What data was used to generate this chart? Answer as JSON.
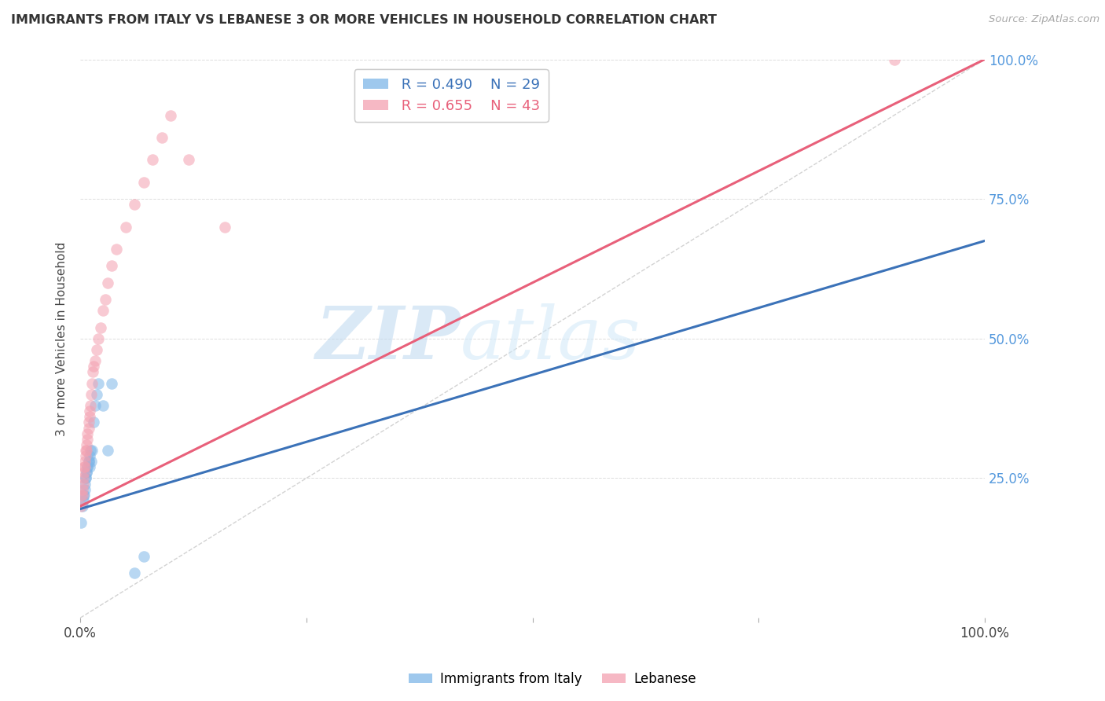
{
  "title": "IMMIGRANTS FROM ITALY VS LEBANESE 3 OR MORE VEHICLES IN HOUSEHOLD CORRELATION CHART",
  "source": "Source: ZipAtlas.com",
  "ylabel": "3 or more Vehicles in Household",
  "legend_label1": "Immigrants from Italy",
  "legend_label2": "Lebanese",
  "R1": 0.49,
  "N1": 29,
  "R2": 0.655,
  "N2": 43,
  "color_italy": "#7EB6E8",
  "color_lebanese": "#F4A0B0",
  "color_italy_line": "#3B72B8",
  "color_lebanese_line": "#E8607A",
  "color_diag": "#C8C8C8",
  "watermark_zip": "ZIP",
  "watermark_atlas": "atlas",
  "italy_x": [
    0.001,
    0.002,
    0.003,
    0.003,
    0.004,
    0.005,
    0.005,
    0.006,
    0.006,
    0.007,
    0.007,
    0.008,
    0.008,
    0.009,
    0.009,
    0.01,
    0.01,
    0.011,
    0.012,
    0.013,
    0.015,
    0.016,
    0.018,
    0.02,
    0.025,
    0.03,
    0.035,
    0.06,
    0.07
  ],
  "italy_y": [
    0.17,
    0.2,
    0.21,
    0.22,
    0.22,
    0.23,
    0.24,
    0.25,
    0.25,
    0.26,
    0.26,
    0.27,
    0.27,
    0.28,
    0.28,
    0.27,
    0.29,
    0.3,
    0.28,
    0.3,
    0.35,
    0.38,
    0.4,
    0.42,
    0.38,
    0.3,
    0.42,
    0.08,
    0.11
  ],
  "lebanese_x": [
    0.001,
    0.001,
    0.002,
    0.002,
    0.003,
    0.003,
    0.004,
    0.004,
    0.005,
    0.005,
    0.006,
    0.006,
    0.007,
    0.007,
    0.008,
    0.008,
    0.009,
    0.009,
    0.01,
    0.01,
    0.011,
    0.012,
    0.013,
    0.014,
    0.015,
    0.016,
    0.018,
    0.02,
    0.022,
    0.025,
    0.028,
    0.03,
    0.035,
    0.04,
    0.05,
    0.06,
    0.07,
    0.08,
    0.09,
    0.1,
    0.12,
    0.16,
    0.9
  ],
  "lebanese_y": [
    0.2,
    0.22,
    0.22,
    0.23,
    0.24,
    0.25,
    0.26,
    0.27,
    0.27,
    0.28,
    0.29,
    0.3,
    0.3,
    0.31,
    0.32,
    0.33,
    0.34,
    0.35,
    0.36,
    0.37,
    0.38,
    0.4,
    0.42,
    0.44,
    0.45,
    0.46,
    0.48,
    0.5,
    0.52,
    0.55,
    0.57,
    0.6,
    0.63,
    0.66,
    0.7,
    0.74,
    0.78,
    0.82,
    0.86,
    0.9,
    0.82,
    0.7,
    1.0
  ],
  "xlim": [
    0.0,
    1.0
  ],
  "ylim": [
    0.0,
    1.0
  ],
  "grid_color": "#DDDDDD",
  "background_color": "#FFFFFF",
  "right_axis_color": "#5599DD",
  "scatter_size": 110,
  "scatter_alpha": 0.55,
  "line_intercept_italy": 0.195,
  "line_slope_italy": 0.48,
  "line_intercept_lebanese": 0.2,
  "line_slope_lebanese": 0.8
}
